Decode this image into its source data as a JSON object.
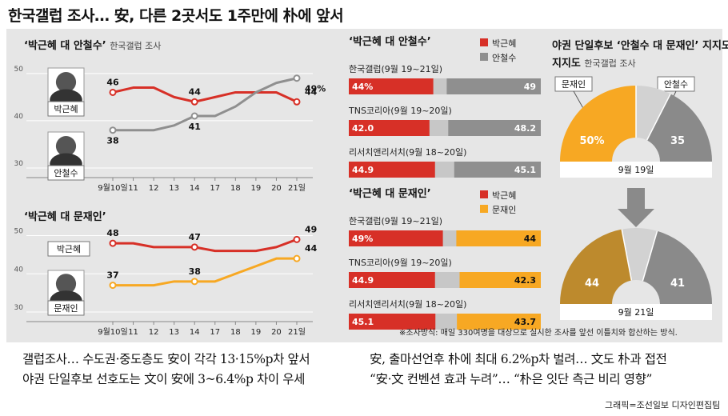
{
  "title": "한국갤럽 조사… 安, 다른 2곳서도 1주만에 朴에 앞서",
  "chart_data": [
    {
      "type": "line",
      "title": "‘박근혜 대 안철수’",
      "subtitle": "한국갤럽 조사",
      "x": [
        "9월10일",
        "11",
        "12",
        "13",
        "14",
        "17",
        "18",
        "19",
        "20",
        "21일"
      ],
      "yticks": [
        30,
        40,
        50
      ],
      "ylim": [
        30,
        52
      ],
      "series": [
        {
          "name": "박근혜",
          "color": "#d73027",
          "values": [
            46,
            47,
            47,
            45,
            44,
            45,
            46,
            46,
            46,
            44
          ],
          "labels": {
            "0": "46",
            "4": "44",
            "9": "44"
          }
        },
        {
          "name": "안철수",
          "color": "#8f8f8f",
          "values": [
            38,
            38,
            38,
            39,
            41,
            41,
            43,
            46,
            48,
            49
          ],
          "labels": {
            "0": "38",
            "4": "41",
            "9": "49%"
          }
        }
      ]
    },
    {
      "type": "line",
      "title": "‘박근혜 대 문재인’",
      "x": [
        "9월10일",
        "11",
        "12",
        "13",
        "14",
        "17",
        "18",
        "19",
        "20",
        "21일"
      ],
      "yticks": [
        30,
        40,
        50
      ],
      "ylim": [
        30,
        52
      ],
      "series": [
        {
          "name": "박근혜",
          "color": "#d73027",
          "values": [
            48,
            48,
            47,
            47,
            47,
            46,
            46,
            46,
            47,
            49
          ],
          "labels": {
            "0": "48",
            "4": "47",
            "9": "49"
          }
        },
        {
          "name": "문재인",
          "color": "#f7a823",
          "values": [
            37,
            37,
            37,
            38,
            38,
            38,
            40,
            42,
            44,
            44
          ],
          "labels": {
            "0": "37",
            "4": "38",
            "9": "44"
          }
        }
      ]
    },
    {
      "type": "bar",
      "title": "‘박근혜 대 안철수’",
      "legend": [
        "박근혜",
        "안철수"
      ],
      "colors": [
        "#d73027",
        "#8f8f8f"
      ],
      "rows": [
        {
          "label": "한국갤럽(9월 19~21일)",
          "a": 44,
          "b": 49,
          "a_label": "44%",
          "b_label": "49"
        },
        {
          "label": "TNS코리아(9월 19~20일)",
          "a": 42.0,
          "b": 48.2,
          "a_label": "42.0",
          "b_label": "48.2"
        },
        {
          "label": "리서치앤리서치(9월 18~20일)",
          "a": 44.9,
          "b": 45.1,
          "a_label": "44.9",
          "b_label": "45.1"
        }
      ]
    },
    {
      "type": "bar",
      "title": "‘박근혜 대 문재인’",
      "legend": [
        "박근혜",
        "문재인"
      ],
      "colors": [
        "#d73027",
        "#f7a823"
      ],
      "rows": [
        {
          "label": "한국갤럽(9월 19~21일)",
          "a": 49,
          "b": 44,
          "a_label": "49%",
          "b_label": "44"
        },
        {
          "label": "TNS코리아(9월 19~20일)",
          "a": 44.9,
          "b": 42.3,
          "a_label": "44.9",
          "b_label": "42.3"
        },
        {
          "label": "리서치앤리서치(9월 18~20일)",
          "a": 45.1,
          "b": 43.7,
          "a_label": "45.1",
          "b_label": "43.7"
        }
      ]
    },
    {
      "type": "pie",
      "title": "야권 단일후보 ‘안철수 대 문재인’ 지지도",
      "subtitle": "한국갤럽 조사",
      "legend": [
        "문재인",
        "안철수"
      ],
      "charts": [
        {
          "date": "9월 19일",
          "a": 50,
          "b": 35,
          "a_label": "50%",
          "b_label": "35"
        },
        {
          "date": "9월 21일",
          "a": 44,
          "b": 41,
          "a_label": "44",
          "b_label": "41"
        }
      ]
    }
  ],
  "line_labels": {
    "park": "박근혜",
    "ahn": "안철수",
    "moon": "문재인"
  },
  "pie_title_line2": "지지도",
  "note": "※조사방식: 매일 330여명을 대상으로 실시한 조사를 앞선 이틀치와 합산하는 방식.",
  "footer": {
    "left_line1": "갤럽조사… 수도권·중도층도 安이 각각 13·15%p차 앞서",
    "left_line2": "야권 단일후보 선호도는 文이 安에 3~6.4%p 차이 우세",
    "right_line1": "安, 출마선언후 朴에 최대 6.2%p차 벌려… 文도 朴과 접전",
    "right_line2": "“安·文 컨벤션 효과 누려”… “朴은 잇단 측근 비리 영향”",
    "credit": "그래픽=조선일보 디자인편집팀"
  },
  "colors": {
    "park": "#d73027",
    "ahn": "#8f8f8f",
    "moon": "#f7a823",
    "moon_dark": "#bd8a2d",
    "ahn_dark": "#8a8a8a"
  }
}
